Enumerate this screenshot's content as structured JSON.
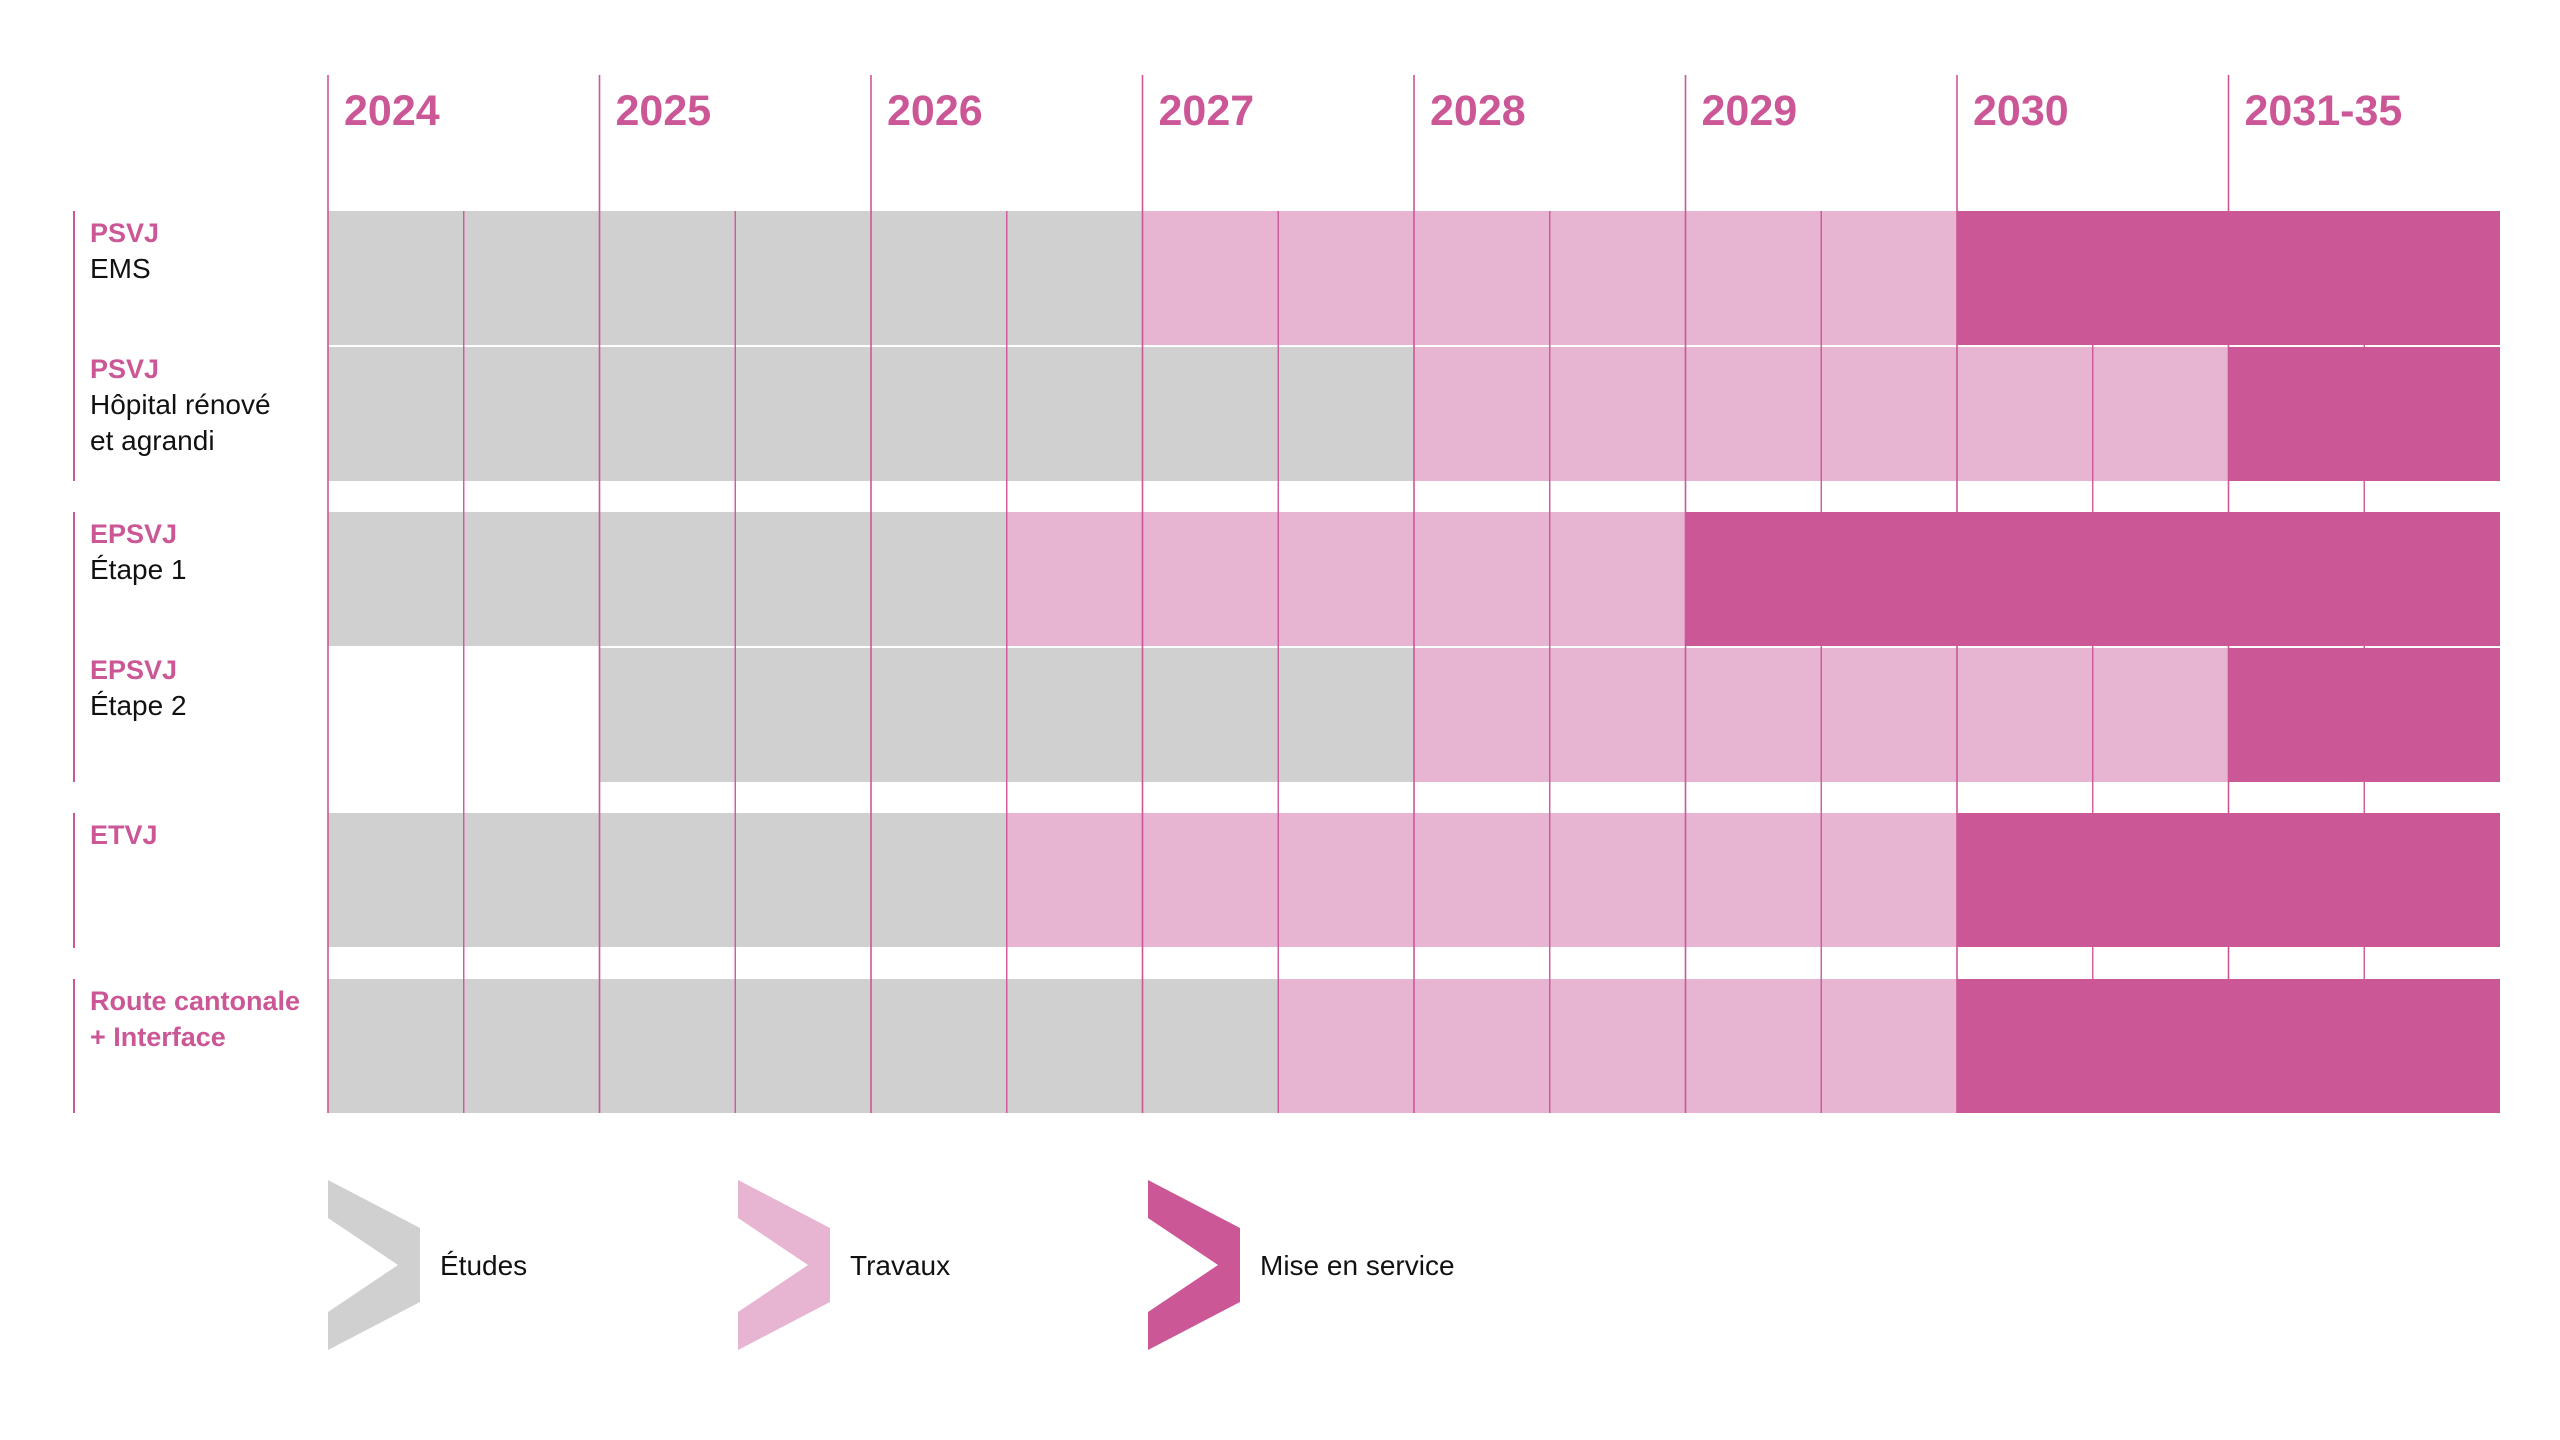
{
  "colors": {
    "etudes": "#d0d0d0",
    "travaux": "#e7b4d1",
    "mise_en_service": "#cb5796",
    "accent": "#cb5796",
    "text": "#111111"
  },
  "chart_data": {
    "type": "gantt",
    "title": "",
    "periods": [
      "2024",
      "2025",
      "2026",
      "2027",
      "2028",
      "2029",
      "2030",
      "2031-35"
    ],
    "subdivisions_per_period": 2,
    "phases": [
      {
        "key": "etudes",
        "label": "Études"
      },
      {
        "key": "travaux",
        "label": "Travaux"
      },
      {
        "key": "mise_en_service",
        "label": "Mise en service"
      }
    ],
    "rows": [
      {
        "code": "PSVJ",
        "lines": [
          "EMS"
        ],
        "group": 1,
        "segments": [
          {
            "phase": "etudes",
            "start": 2024.0,
            "end": 2027.0
          },
          {
            "phase": "travaux",
            "start": 2027.0,
            "end": 2030.0
          },
          {
            "phase": "mise_en_service",
            "start": 2030.0,
            "end": 2032.0
          }
        ]
      },
      {
        "code": "PSVJ",
        "lines": [
          "Hôpital rénové",
          "et agrandi"
        ],
        "group": 1,
        "segments": [
          {
            "phase": "etudes",
            "start": 2024.0,
            "end": 2028.0
          },
          {
            "phase": "travaux",
            "start": 2028.0,
            "end": 2031.0
          },
          {
            "phase": "mise_en_service",
            "start": 2031.0,
            "end": 2032.0
          }
        ]
      },
      {
        "code": "EPSVJ",
        "lines": [
          "Étape 1"
        ],
        "group": 2,
        "segments": [
          {
            "phase": "etudes",
            "start": 2024.0,
            "end": 2026.5
          },
          {
            "phase": "travaux",
            "start": 2026.5,
            "end": 2029.0
          },
          {
            "phase": "mise_en_service",
            "start": 2029.0,
            "end": 2032.0
          }
        ]
      },
      {
        "code": "EPSVJ",
        "lines": [
          "Étape 2"
        ],
        "group": 2,
        "segments": [
          {
            "phase": "etudes",
            "start": 2025.0,
            "end": 2028.0
          },
          {
            "phase": "travaux",
            "start": 2028.0,
            "end": 2031.0
          },
          {
            "phase": "mise_en_service",
            "start": 2031.0,
            "end": 2032.0
          }
        ]
      },
      {
        "code": "ETVJ",
        "lines": [],
        "group": 3,
        "segments": [
          {
            "phase": "etudes",
            "start": 2024.0,
            "end": 2026.5
          },
          {
            "phase": "travaux",
            "start": 2026.5,
            "end": 2030.0
          },
          {
            "phase": "mise_en_service",
            "start": 2030.0,
            "end": 2032.0
          }
        ]
      },
      {
        "code": "Route cantonale",
        "code_line2": "+ Interface",
        "lines": [],
        "group": 4,
        "segments": [
          {
            "phase": "etudes",
            "start": 2024.0,
            "end": 2027.5
          },
          {
            "phase": "travaux",
            "start": 2027.5,
            "end": 2030.0
          },
          {
            "phase": "mise_en_service",
            "start": 2030.0,
            "end": 2032.0
          }
        ]
      }
    ],
    "legend": [
      {
        "phase": "etudes",
        "label": "Études"
      },
      {
        "phase": "travaux",
        "label": "Travaux"
      },
      {
        "phase": "mise_en_service",
        "label": "Mise en service"
      }
    ]
  }
}
